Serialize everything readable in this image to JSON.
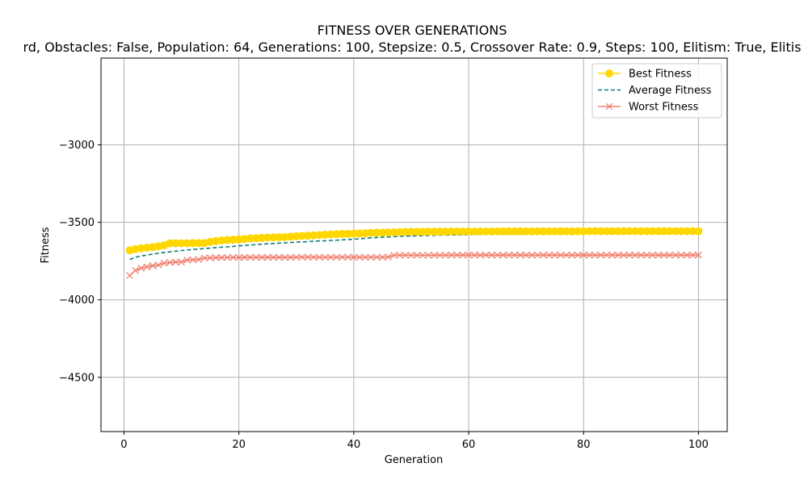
{
  "chart_data": {
    "type": "line",
    "title": "FITNESS OVER GENERATIONS",
    "subtitle": "rd, Obstacles: False, Population: 64, Generations: 100, Stepsize: 0.5, Crossover Rate: 0.9, Steps: 100, Elitism: True, Elitis",
    "xlabel": "Generation",
    "ylabel": "Fitness",
    "xlim": [
      -4,
      105
    ],
    "ylim": [
      -4850,
      -2440
    ],
    "x_ticks": [
      0,
      20,
      40,
      60,
      80,
      100
    ],
    "y_ticks": [
      -4500,
      -4000,
      -3500,
      -3000
    ],
    "grid": true,
    "legend_position": "top-right",
    "series": [
      {
        "name": "Best Fitness",
        "color": "#FFD700",
        "style": "solid",
        "marker": "circle",
        "values": [
          -3680,
          -3673,
          -3667,
          -3663,
          -3660,
          -3655,
          -3648,
          -3635,
          -3635,
          -3635,
          -3635,
          -3634,
          -3634,
          -3633,
          -3626,
          -3621,
          -3617,
          -3614,
          -3612,
          -3610,
          -3607,
          -3604,
          -3602,
          -3600,
          -3598,
          -3597,
          -3596,
          -3595,
          -3592,
          -3590,
          -3588,
          -3586,
          -3584,
          -3582,
          -3580,
          -3578,
          -3576,
          -3575,
          -3574,
          -3573,
          -3572,
          -3570,
          -3568,
          -3567,
          -3566,
          -3565,
          -3564,
          -3563,
          -3562,
          -3561,
          -3561,
          -3561,
          -3560,
          -3560,
          -3560,
          -3560,
          -3559,
          -3559,
          -3559,
          -3559,
          -3559,
          -3559,
          -3559,
          -3559,
          -3559,
          -3558,
          -3558,
          -3558,
          -3558,
          -3558,
          -3558,
          -3558,
          -3558,
          -3558,
          -3558,
          -3558,
          -3558,
          -3558,
          -3558,
          -3558,
          -3557,
          -3557,
          -3557,
          -3557,
          -3557,
          -3557,
          -3557,
          -3557,
          -3557,
          -3557,
          -3557,
          -3557,
          -3557,
          -3557,
          -3557,
          -3557,
          -3557,
          -3557,
          -3557,
          -3557
        ]
      },
      {
        "name": "Average Fitness",
        "color": "#0F7B7B",
        "style": "dashed",
        "marker": "none",
        "values": [
          -3740,
          -3725,
          -3717,
          -3711,
          -3705,
          -3699,
          -3694,
          -3690,
          -3686,
          -3682,
          -3678,
          -3675,
          -3672,
          -3669,
          -3666,
          -3663,
          -3660,
          -3658,
          -3655,
          -3652,
          -3649,
          -3646,
          -3644,
          -3641,
          -3638,
          -3636,
          -3634,
          -3632,
          -3630,
          -3628,
          -3626,
          -3624,
          -3622,
          -3620,
          -3619,
          -3617,
          -3615,
          -3613,
          -3611,
          -3609,
          -3606,
          -3603,
          -3600,
          -3598,
          -3596,
          -3594,
          -3592,
          -3590,
          -3589,
          -3588,
          -3587,
          -3586,
          -3585,
          -3584,
          -3583,
          -3582,
          -3581,
          -3580,
          -3579,
          -3578,
          -3578,
          -3577,
          -3577,
          -3576,
          -3576,
          -3576,
          -3575,
          -3575,
          -3575,
          -3575,
          -3574,
          -3574,
          -3574,
          -3574,
          -3574,
          -3573,
          -3573,
          -3573,
          -3573,
          -3573,
          -3573,
          -3573,
          -3572,
          -3572,
          -3572,
          -3572,
          -3572,
          -3572,
          -3572,
          -3572,
          -3572,
          -3572,
          -3572,
          -3572,
          -3571,
          -3571,
          -3571,
          -3571,
          -3571,
          -3570
        ]
      },
      {
        "name": "Worst Fitness",
        "color": "#F08070",
        "style": "solid",
        "marker": "x",
        "values": [
          -3843,
          -3810,
          -3795,
          -3787,
          -3780,
          -3775,
          -3763,
          -3759,
          -3756,
          -3756,
          -3743,
          -3742,
          -3740,
          -3730,
          -3729,
          -3728,
          -3727,
          -3727,
          -3727,
          -3727,
          -3726,
          -3726,
          -3726,
          -3726,
          -3726,
          -3726,
          -3726,
          -3726,
          -3726,
          -3725,
          -3725,
          -3725,
          -3725,
          -3725,
          -3725,
          -3725,
          -3725,
          -3725,
          -3725,
          -3725,
          -3725,
          -3725,
          -3725,
          -3725,
          -3725,
          -3724,
          -3712,
          -3712,
          -3712,
          -3712,
          -3712,
          -3712,
          -3712,
          -3712,
          -3712,
          -3712,
          -3711,
          -3711,
          -3711,
          -3711,
          -3711,
          -3711,
          -3711,
          -3711,
          -3711,
          -3711,
          -3711,
          -3711,
          -3711,
          -3711,
          -3711,
          -3711,
          -3711,
          -3711,
          -3711,
          -3711,
          -3711,
          -3711,
          -3711,
          -3711,
          -3711,
          -3711,
          -3711,
          -3711,
          -3711,
          -3711,
          -3711,
          -3711,
          -3711,
          -3711,
          -3711,
          -3711,
          -3711,
          -3711,
          -3711,
          -3711,
          -3711,
          -3711,
          -3711,
          -3711
        ]
      }
    ]
  }
}
